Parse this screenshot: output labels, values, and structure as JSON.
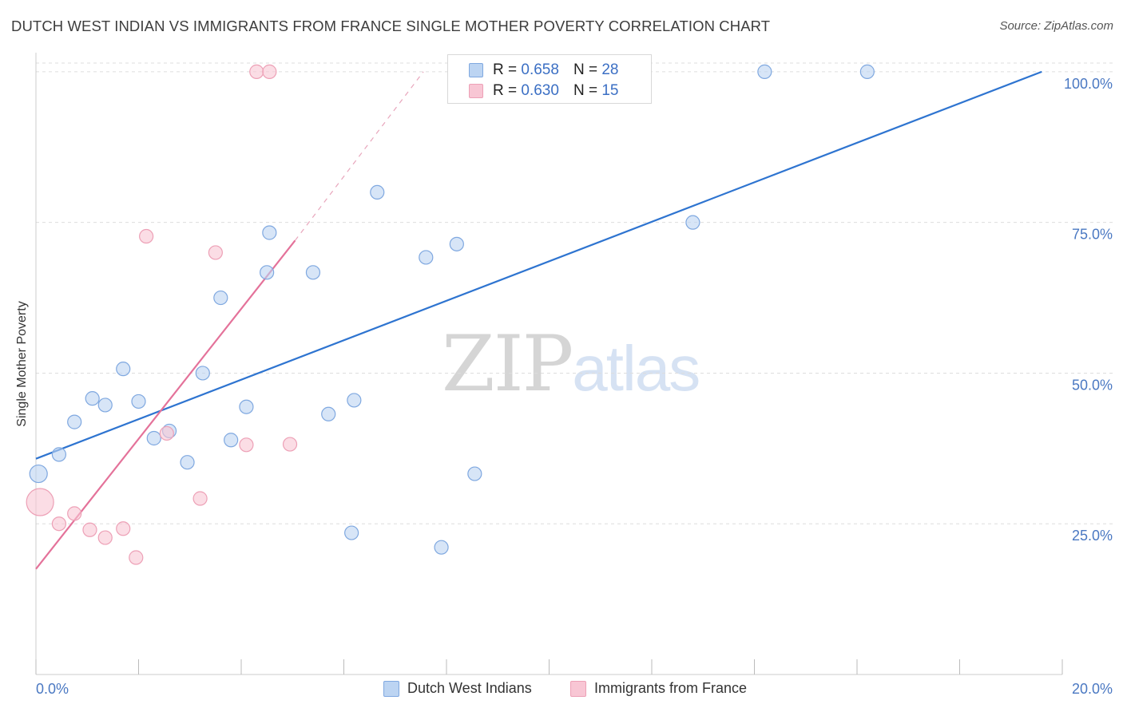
{
  "header": {
    "title": "DUTCH WEST INDIAN VS IMMIGRANTS FROM FRANCE SINGLE MOTHER POVERTY CORRELATION CHART",
    "source": "Source: ZipAtlas.com"
  },
  "watermark": {
    "zip": "ZIP",
    "atlas": "atlas"
  },
  "legend": {
    "r_label": "R =",
    "n_label": "N =",
    "rows": [
      {
        "r": "0.658",
        "n": "28"
      },
      {
        "r": "0.630",
        "n": "15"
      }
    ]
  },
  "colors": {
    "blue_fill": "#bcd4f2",
    "blue_stroke": "#7fa8e0",
    "blue_line": "#2e74d0",
    "pink_fill": "#f8c6d4",
    "pink_stroke": "#eda0b6",
    "pink_line": "#e4729a",
    "grid": "#dddddd",
    "axis_label": "#4a78c2"
  },
  "chart_data": {
    "type": "scatter",
    "title": "DUTCH WEST INDIAN VS IMMIGRANTS FROM FRANCE SINGLE MOTHER POVERTY CORRELATION CHART",
    "xlabel": "",
    "ylabel": "Single Mother Poverty",
    "xlim": [
      0,
      20
    ],
    "ylim": [
      0,
      102.5
    ],
    "x_ticks": [
      "0.0%",
      "20.0%"
    ],
    "y_ticks": [
      {
        "value": 25,
        "label": "25.0%"
      },
      {
        "value": 50,
        "label": "50.0%"
      },
      {
        "value": 75,
        "label": "75.0%"
      },
      {
        "value": 100,
        "label": "100.0%"
      }
    ],
    "series": [
      {
        "name": "Dutch West Indians",
        "color": "blue",
        "trend": {
          "x0": 0,
          "y0": 35.8,
          "x1": 19.6,
          "y1": 100
        },
        "points": [
          {
            "x": 0.05,
            "y": 33.3,
            "big": true
          },
          {
            "x": 0.45,
            "y": 36.5
          },
          {
            "x": 0.75,
            "y": 41.9
          },
          {
            "x": 1.1,
            "y": 45.8
          },
          {
            "x": 1.35,
            "y": 44.7
          },
          {
            "x": 1.7,
            "y": 50.7
          },
          {
            "x": 2.0,
            "y": 45.3
          },
          {
            "x": 2.3,
            "y": 39.2
          },
          {
            "x": 2.6,
            "y": 40.4
          },
          {
            "x": 2.95,
            "y": 35.2
          },
          {
            "x": 3.25,
            "y": 50.0
          },
          {
            "x": 3.6,
            "y": 62.5
          },
          {
            "x": 3.8,
            "y": 38.9
          },
          {
            "x": 4.1,
            "y": 44.4
          },
          {
            "x": 4.55,
            "y": 73.3
          },
          {
            "x": 4.5,
            "y": 66.7
          },
          {
            "x": 5.4,
            "y": 66.7
          },
          {
            "x": 5.7,
            "y": 43.2
          },
          {
            "x": 6.15,
            "y": 23.5
          },
          {
            "x": 6.2,
            "y": 45.5
          },
          {
            "x": 6.65,
            "y": 80.0
          },
          {
            "x": 7.6,
            "y": 69.2
          },
          {
            "x": 7.9,
            "y": 21.1
          },
          {
            "x": 8.2,
            "y": 71.4
          },
          {
            "x": 8.55,
            "y": 33.3
          },
          {
            "x": 12.8,
            "y": 75.0
          },
          {
            "x": 14.2,
            "y": 100.0
          },
          {
            "x": 16.2,
            "y": 100.0
          }
        ]
      },
      {
        "name": "Immigrants from France",
        "color": "pink",
        "trend": {
          "x0": 0,
          "y0": 17.5,
          "x1": 5.05,
          "y1": 72.0,
          "dash_x1": 7.55,
          "dash_y1": 100
        },
        "points": [
          {
            "x": 0.08,
            "y": 28.6,
            "big": true
          },
          {
            "x": 0.45,
            "y": 25.0
          },
          {
            "x": 0.75,
            "y": 26.7
          },
          {
            "x": 1.05,
            "y": 24.0
          },
          {
            "x": 1.35,
            "y": 22.7
          },
          {
            "x": 1.7,
            "y": 24.2
          },
          {
            "x": 1.95,
            "y": 19.4
          },
          {
            "x": 2.15,
            "y": 72.7
          },
          {
            "x": 2.55,
            "y": 40.0
          },
          {
            "x": 3.2,
            "y": 29.2
          },
          {
            "x": 3.5,
            "y": 70.0
          },
          {
            "x": 4.1,
            "y": 38.1
          },
          {
            "x": 4.3,
            "y": 100.0
          },
          {
            "x": 4.55,
            "y": 100.0
          },
          {
            "x": 4.95,
            "y": 38.2
          }
        ]
      }
    ]
  }
}
